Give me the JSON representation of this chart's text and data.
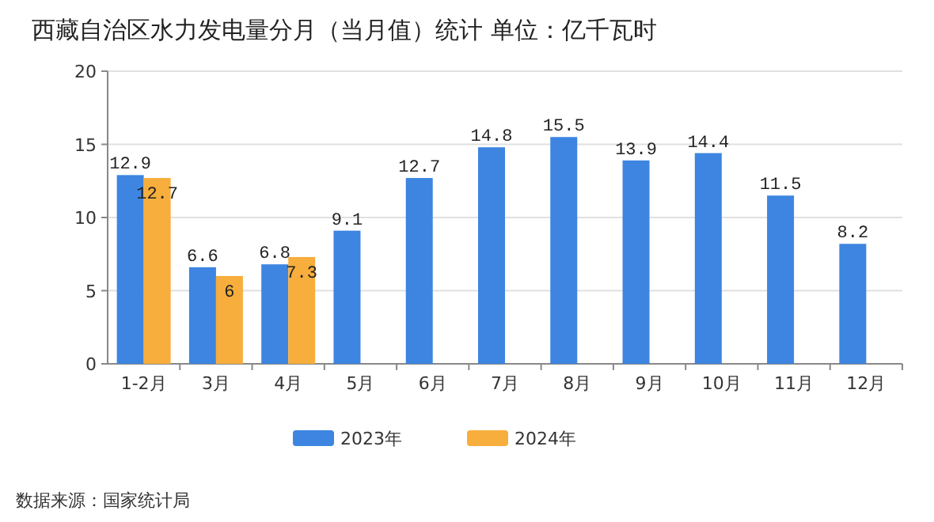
{
  "chart_data": {
    "type": "bar",
    "title": "西藏自治区水力发电量分月（当月值）统计 单位：亿千瓦时",
    "categories": [
      "1-2月",
      "3月",
      "4月",
      "5月",
      "6月",
      "7月",
      "8月",
      "9月",
      "10月",
      "11月",
      "12月"
    ],
    "series": [
      {
        "name": "2023年",
        "color": "#3d85e0",
        "values": [
          12.9,
          6.6,
          6.8,
          9.1,
          12.7,
          14.8,
          15.5,
          13.9,
          14.4,
          11.5,
          8.2
        ]
      },
      {
        "name": "2024年",
        "color": "#f7ae3c",
        "values": [
          12.7,
          6,
          7.3,
          null,
          null,
          null,
          null,
          null,
          null,
          null,
          null
        ]
      }
    ],
    "ylim": [
      0,
      20
    ],
    "yticks": [
      0,
      5,
      10,
      15,
      20
    ],
    "grid": "y",
    "legend": "bottom",
    "data_labels": true,
    "annotations": [
      "数据来源：国家统计局"
    ]
  }
}
